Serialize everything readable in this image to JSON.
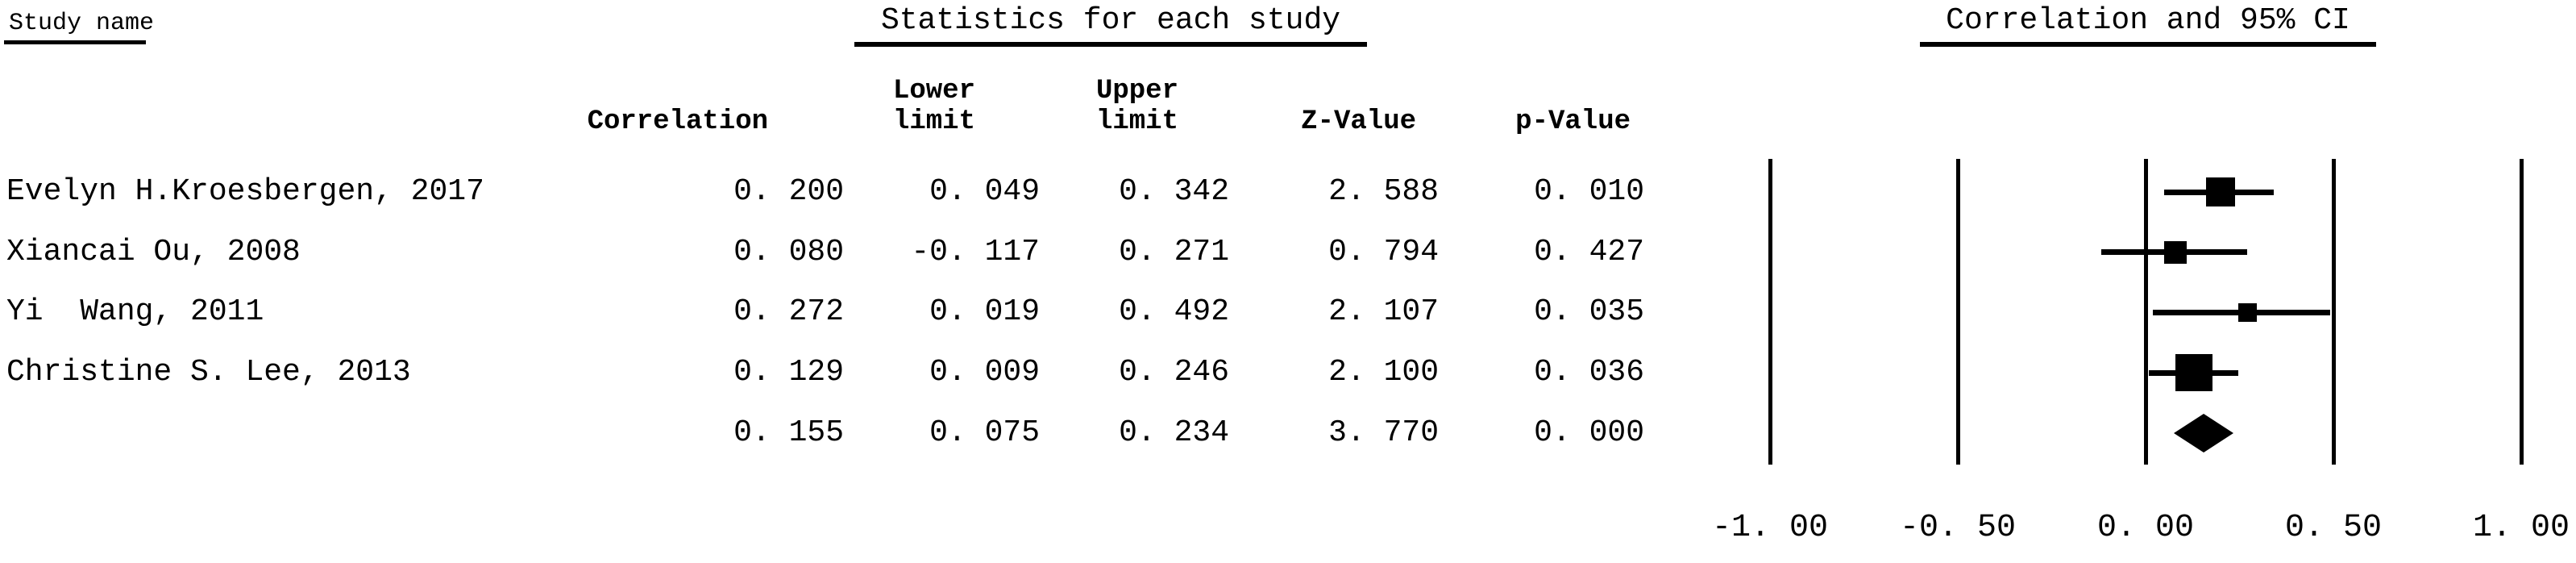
{
  "table": {
    "study_col_header": "Study name",
    "stats_header": "Statistics for each study",
    "plot_header": "Correlation and 95% CI",
    "columns": {
      "correlation": "Correlation",
      "lower": "Lower\nlimit",
      "upper": "Upper\nlimit",
      "z": "Z-Value",
      "p": "p-Value"
    },
    "rows": [
      {
        "name": "Evelyn H.Kroesbergen, 2017",
        "correlation": "0. 200",
        "lower": "0. 049",
        "upper": "0. 342",
        "z": "2. 588",
        "p": "0. 010"
      },
      {
        "name": "Xiancai Ou, 2008",
        "correlation": "0. 080",
        "lower": "-0. 117",
        "upper": "0. 271",
        "z": "0. 794",
        "p": "0. 427"
      },
      {
        "name": "Yi  Wang, 2011",
        "correlation": "0. 272",
        "lower": "0. 019",
        "upper": "0. 492",
        "z": "2. 107",
        "p": "0. 035"
      },
      {
        "name": "Christine S. Lee, 2013",
        "correlation": "0. 129",
        "lower": "0. 009",
        "upper": "0. 246",
        "z": "2. 100",
        "p": "0. 036"
      },
      {
        "name": "",
        "correlation": "0. 155",
        "lower": "0. 075",
        "upper": "0. 234",
        "z": "3. 770",
        "p": "0. 000"
      }
    ]
  },
  "chart_data": {
    "type": "forest",
    "title": "Correlation and 95% CI",
    "stats_title": "Statistics for each study",
    "x_axis": {
      "label": "",
      "min": -1.0,
      "max": 1.0,
      "ticks": [
        -1.0,
        -0.5,
        0.0,
        0.5,
        1.0
      ],
      "tick_labels": [
        "-1. 00",
        "-0. 50",
        "0. 00",
        "0. 50",
        "1. 00"
      ],
      "grid": "vertical-lines-at-ticks"
    },
    "studies": [
      {
        "name": "Evelyn H.Kroesbergen, 2017",
        "correlation": 0.2,
        "lower": 0.049,
        "upper": 0.342,
        "z_value": 2.588,
        "p_value": 0.01,
        "marker": "square",
        "marker_size_px": 36
      },
      {
        "name": "Xiancai Ou, 2008",
        "correlation": 0.08,
        "lower": -0.117,
        "upper": 0.271,
        "z_value": 0.794,
        "p_value": 0.427,
        "marker": "square",
        "marker_size_px": 28
      },
      {
        "name": "Yi  Wang, 2011",
        "correlation": 0.272,
        "lower": 0.019,
        "upper": 0.492,
        "z_value": 2.107,
        "p_value": 0.035,
        "marker": "square",
        "marker_size_px": 23
      },
      {
        "name": "Christine S. Lee, 2013",
        "correlation": 0.129,
        "lower": 0.009,
        "upper": 0.246,
        "z_value": 2.1,
        "p_value": 0.036,
        "marker": "square",
        "marker_size_px": 46
      }
    ],
    "summary": {
      "correlation": 0.155,
      "lower": 0.075,
      "upper": 0.234,
      "z_value": 3.77,
      "p_value": 0.0,
      "marker": "diamond"
    },
    "colors": {
      "foreground": "#000000",
      "background": "#ffffff"
    }
  }
}
